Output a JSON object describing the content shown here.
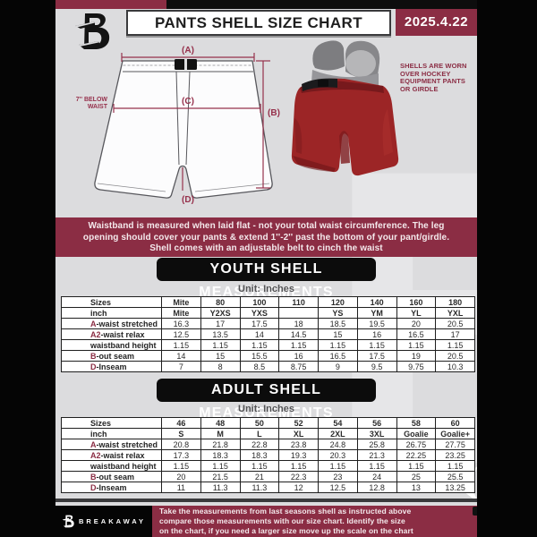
{
  "header": {
    "title": "PANTS SHELL SIZE CHART",
    "date": "2025.4.22"
  },
  "diagram": {
    "labels": {
      "a": "(A)",
      "b": "(B)",
      "c": "(C)",
      "d": "(D)"
    },
    "below_waist_note": [
      "7'' BELOW",
      "WAIST"
    ],
    "photo_caption": [
      "SHELLS ARE WORN",
      "OVER HOCKEY",
      "EQUIPMENT PANTS",
      "OR GIRDLE"
    ]
  },
  "info_banner": {
    "lines": [
      "Waistband is measured when laid flat - not your total waist circumference. The leg",
      "opening should cover your pants & extend 1''-2'' past the bottom of your pant/girdle.",
      "Shell comes with an adjustable belt to cinch the waist"
    ]
  },
  "youth_section": {
    "heading": "YOUTH SHELL MEASUREMENTS",
    "unit_label": "Unit: Inches",
    "table": {
      "rows": [
        {
          "prefix": "",
          "label": "Sizes",
          "header": true,
          "values": [
            "Mite",
            "80",
            "100",
            "110",
            "120",
            "140",
            "160",
            "180"
          ]
        },
        {
          "prefix": "",
          "label": "inch",
          "header": true,
          "values": [
            "Mite",
            "Y2XS",
            "YXS",
            "",
            "YS",
            "YM",
            "YL",
            "YXL"
          ]
        },
        {
          "prefix": "A",
          "label": "-waist stretched",
          "values": [
            "16.3",
            "17",
            "17.5",
            "18",
            "18.5",
            "19.5",
            "20",
            "20.5"
          ]
        },
        {
          "prefix": "A2",
          "label": "-waist relax",
          "values": [
            "12.5",
            "13.5",
            "14",
            "14.5",
            "15",
            "16",
            "16.5",
            "17"
          ]
        },
        {
          "prefix": "",
          "label": "waistband height",
          "values": [
            "1.15",
            "1.15",
            "1.15",
            "1.15",
            "1.15",
            "1.15",
            "1.15",
            "1.15"
          ]
        },
        {
          "prefix": "B",
          "label": "-out seam",
          "values": [
            "14",
            "15",
            "15.5",
            "16",
            "16.5",
            "17.5",
            "19",
            "20.5"
          ]
        },
        {
          "prefix": "D",
          "label": "-Inseam",
          "values": [
            "7",
            "8",
            "8.5",
            "8.75",
            "9",
            "9.5",
            "9.75",
            "10.3"
          ]
        }
      ]
    }
  },
  "adult_section": {
    "heading": "ADULT SHELL MEASUREMENTS",
    "unit_label": "Unit: Inches",
    "table": {
      "rows": [
        {
          "prefix": "",
          "label": "Sizes",
          "header": true,
          "values": [
            "46",
            "48",
            "50",
            "52",
            "54",
            "56",
            "58",
            "60"
          ]
        },
        {
          "prefix": "",
          "label": "inch",
          "header": true,
          "values": [
            "S",
            "M",
            "L",
            "XL",
            "2XL",
            "3XL",
            "Goalie",
            "Goalie+"
          ]
        },
        {
          "prefix": "A",
          "label": "-waist stretched",
          "values": [
            "20.8",
            "21.8",
            "22.8",
            "23.8",
            "24.8",
            "25.8",
            "26.75",
            "27.75"
          ]
        },
        {
          "prefix": "A2",
          "label": "-waist relax",
          "values": [
            "17.3",
            "18.3",
            "18.3",
            "19.3",
            "20.3",
            "21.3",
            "22.25",
            "23.25"
          ]
        },
        {
          "prefix": "",
          "label": "waistband height",
          "values": [
            "1.15",
            "1.15",
            "1.15",
            "1.15",
            "1.15",
            "1.15",
            "1.15",
            "1.15"
          ]
        },
        {
          "prefix": "B",
          "label": "-out seam",
          "values": [
            "20",
            "21.5",
            "21",
            "22.3",
            "23",
            "24",
            "25",
            "25.5"
          ]
        },
        {
          "prefix": "D",
          "label": "-Inseam",
          "values": [
            "11",
            "11.3",
            "11.3",
            "12",
            "12.5",
            "12.8",
            "13",
            "13.25"
          ]
        }
      ]
    }
  },
  "footer": {
    "brand": "BREAKAWAY",
    "note_lines": [
      "Take the measurements from last seasons shell as instructed above",
      "compare those measurements  with our size chart. Identify the size",
      "on the chart, if you need a larger size move up the scale on the chart"
    ]
  },
  "colors": {
    "maroon": "#8B2D44",
    "page_bg": "#DCDCDE",
    "black": "#050505",
    "shell_red": "#9C2526",
    "annotation_red": "#96314C"
  }
}
